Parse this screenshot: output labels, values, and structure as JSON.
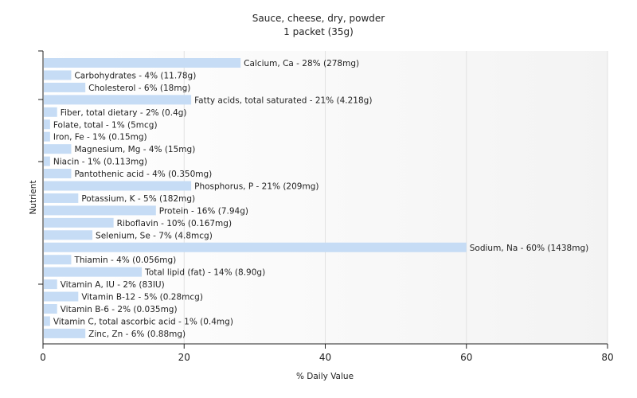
{
  "chart_data": {
    "type": "bar",
    "orientation": "horizontal",
    "title": "Sauce, cheese, dry, powder",
    "subtitle": "1 packet (35g)",
    "xlabel": "% Daily Value",
    "ylabel": "Nutrient",
    "xlim": [
      0,
      80
    ],
    "xticks": [
      0,
      20,
      40,
      60,
      80
    ],
    "grid": true,
    "bar_color": "#c6dcf5",
    "categories": [
      "Calcium, Ca",
      "Carbohydrates",
      "Cholesterol",
      "Fatty acids, total saturated",
      "Fiber, total dietary",
      "Folate, total",
      "Iron, Fe",
      "Magnesium, Mg",
      "Niacin",
      "Pantothenic acid",
      "Phosphorus, P",
      "Potassium, K",
      "Protein",
      "Riboflavin",
      "Selenium, Se",
      "Sodium, Na",
      "Thiamin",
      "Total lipid (fat)",
      "Vitamin A, IU",
      "Vitamin B-12",
      "Vitamin B-6",
      "Vitamin C, total ascorbic acid",
      "Zinc, Zn"
    ],
    "values": [
      28,
      4,
      6,
      21,
      2,
      1,
      1,
      4,
      1,
      4,
      21,
      5,
      16,
      10,
      7,
      60,
      4,
      14,
      2,
      5,
      2,
      1,
      6
    ],
    "labels": [
      "Calcium, Ca - 28% (278mg)",
      "Carbohydrates - 4% (11.78g)",
      "Cholesterol - 6% (18mg)",
      "Fatty acids, total saturated - 21% (4.218g)",
      "Fiber, total dietary - 2% (0.4g)",
      "Folate, total - 1% (5mcg)",
      "Iron, Fe - 1% (0.15mg)",
      "Magnesium, Mg - 4% (15mg)",
      "Niacin - 1% (0.113mg)",
      "Pantothenic acid - 4% (0.350mg)",
      "Phosphorus, P - 21% (209mg)",
      "Potassium, K - 5% (182mg)",
      "Protein - 16% (7.94g)",
      "Riboflavin - 10% (0.167mg)",
      "Selenium, Se - 7% (4.8mcg)",
      "Sodium, Na - 60% (1438mg)",
      "Thiamin - 4% (0.056mg)",
      "Total lipid (fat) - 14% (8.90g)",
      "Vitamin A, IU - 2% (83IU)",
      "Vitamin B-12 - 5% (0.28mcg)",
      "Vitamin B-6 - 2% (0.035mg)",
      "Vitamin C, total ascorbic acid - 1% (0.4mg)",
      "Zinc, Zn - 6% (0.88mg)"
    ]
  }
}
